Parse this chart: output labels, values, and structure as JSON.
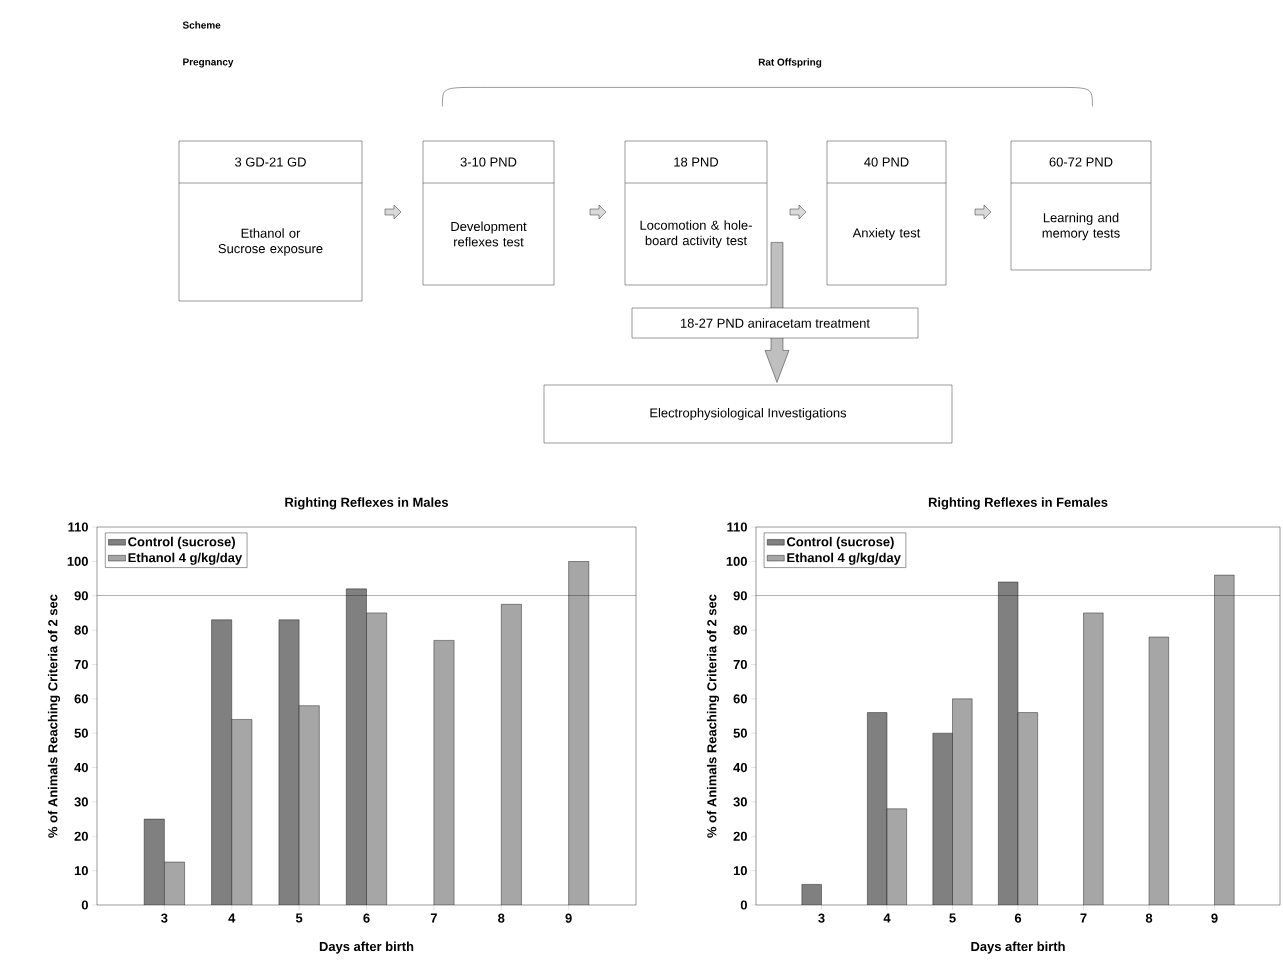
{
  "chart_data": [
    {
      "type": "other",
      "title": "Scheme",
      "annotations": [
        "Pregnancy",
        "Rat Offspring",
        "3 GD-21 GD",
        "Ethanol or Sucrose exposure",
        "3-10 PND",
        "Development reflexes test",
        "18 PND",
        "Locomotion & hole-board activity test",
        "40 PND",
        "Anxiety test",
        "60-72 PND",
        "Learning and memory tests",
        "18-27 PND aniracetam treatment",
        "Electrophysiological Investigations"
      ]
    },
    {
      "type": "bar",
      "title": "Righting Reflexes in Males",
      "xlabel": "Days after birth",
      "ylabel": "% of Animals Reaching Criteria of 2 sec",
      "categories": [
        "3",
        "4",
        "5",
        "6",
        "7",
        "8",
        "9"
      ],
      "series": [
        {
          "name": "Control (sucrose)",
          "color": "#808080",
          "values": [
            25,
            83,
            83,
            92,
            null,
            null,
            null
          ]
        },
        {
          "name": "Ethanol 4 g/kg/day",
          "color": "#a6a6a6",
          "values": [
            12.5,
            54,
            58,
            85,
            77,
            87.5,
            100
          ]
        }
      ],
      "ylim": [
        0,
        110
      ],
      "yticks": [
        0,
        10,
        20,
        30,
        40,
        50,
        60,
        70,
        80,
        90,
        100,
        110
      ],
      "ref_lines": [
        {
          "axis": "y",
          "value": 90
        }
      ],
      "legend": "top left"
    },
    {
      "type": "bar",
      "title": "Righting Reflexes in Females",
      "xlabel": "Days after birth",
      "ylabel": "% of Animals Reaching Criteria of 2 sec",
      "categories": [
        "3",
        "4",
        "5",
        "6",
        "7",
        "8",
        "9"
      ],
      "series": [
        {
          "name": "Control (sucrose)",
          "color": "#808080",
          "values": [
            6,
            56,
            50,
            94,
            null,
            null,
            null
          ]
        },
        {
          "name": "Ethanol 4 g/kg/day",
          "color": "#a6a6a6",
          "values": [
            null,
            28,
            60,
            56,
            85,
            78,
            96
          ]
        }
      ],
      "ylim": [
        0,
        110
      ],
      "yticks": [
        0,
        10,
        20,
        30,
        40,
        50,
        60,
        70,
        80,
        90,
        100,
        110
      ],
      "ref_lines": [
        {
          "axis": "y",
          "value": 90
        }
      ],
      "legend": "top left"
    }
  ]
}
